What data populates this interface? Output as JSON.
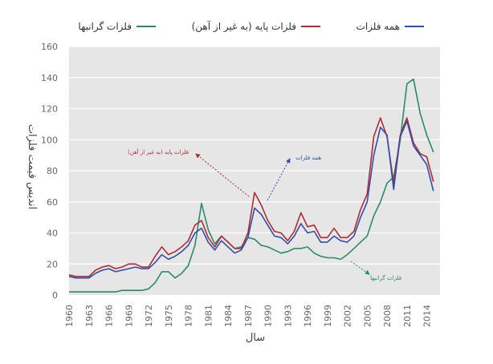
{
  "chart_data": {
    "type": "line",
    "xlabel": "سال",
    "ylabel": "اندیس قیمت فلزات",
    "ylim": [
      0,
      160
    ],
    "yticks": [
      0,
      20,
      40,
      60,
      80,
      100,
      120,
      140,
      160
    ],
    "xlim": [
      1960,
      2016
    ],
    "xticks": [
      1960,
      1963,
      1966,
      1969,
      1972,
      1975,
      1978,
      1981,
      1984,
      1987,
      1990,
      1993,
      1996,
      1999,
      2002,
      2005,
      2008,
      2011,
      2014
    ],
    "grid": "horizontal",
    "legend_position": "top",
    "background": "#e6e6e6",
    "x": [
      1960,
      1961,
      1962,
      1963,
      1964,
      1965,
      1966,
      1967,
      1968,
      1969,
      1970,
      1971,
      1972,
      1973,
      1974,
      1975,
      1976,
      1977,
      1978,
      1979,
      1980,
      1981,
      1982,
      1983,
      1984,
      1985,
      1986,
      1987,
      1988,
      1989,
      1990,
      1991,
      1992,
      1993,
      1994,
      1995,
      1996,
      1997,
      1998,
      1999,
      2000,
      2001,
      2002,
      2003,
      2004,
      2005,
      2006,
      2007,
      2008,
      2009,
      2010,
      2011,
      2012,
      2013,
      2014,
      2015
    ],
    "series": [
      {
        "name": "همه فلزات",
        "color": "#2f4fa8",
        "values": [
          12,
          11,
          11,
          11,
          14,
          16,
          17,
          15,
          16,
          17,
          18,
          17,
          17,
          21,
          26,
          23,
          25,
          28,
          32,
          40,
          43,
          34,
          29,
          35,
          31,
          27,
          29,
          37,
          56,
          52,
          45,
          38,
          37,
          33,
          38,
          46,
          40,
          41,
          34,
          34,
          38,
          35,
          34,
          38,
          50,
          60,
          90,
          108,
          103,
          68,
          102,
          112,
          96,
          90,
          84,
          67
        ]
      },
      {
        "name": "فلزات پایه (به غیر از آهن)",
        "color": "#b22a33",
        "values": [
          13,
          12,
          12,
          12,
          16,
          18,
          19,
          17,
          18,
          20,
          20,
          18,
          18,
          25,
          31,
          26,
          28,
          31,
          35,
          45,
          48,
          37,
          31,
          38,
          34,
          30,
          30,
          40,
          66,
          58,
          48,
          41,
          40,
          35,
          41,
          53,
          44,
          45,
          37,
          37,
          43,
          37,
          37,
          41,
          55,
          65,
          102,
          114,
          102,
          72,
          103,
          114,
          98,
          91,
          89,
          73
        ]
      },
      {
        "name": "فلزات گرانبها",
        "color": "#2a8a6e",
        "values": [
          2,
          2,
          2,
          2,
          2,
          2,
          2,
          2,
          3,
          3,
          3,
          3,
          4,
          8,
          15,
          15,
          11,
          14,
          19,
          32,
          59,
          42,
          33,
          38,
          34,
          30,
          31,
          37,
          36,
          32,
          31,
          29,
          27,
          28,
          30,
          30,
          31,
          27,
          25,
          24,
          24,
          23,
          26,
          30,
          34,
          38,
          51,
          60,
          72,
          76,
          100,
          136,
          139,
          117,
          103,
          92
        ]
      }
    ],
    "annotations": [
      {
        "text": "فلزات پایه (به غیر از آهن)",
        "color": "#b22a33"
      },
      {
        "text": "همه فلزات",
        "color": "#2f4fa8"
      },
      {
        "text": "فلزات گرانبها",
        "color": "#2a8a6e"
      }
    ]
  }
}
